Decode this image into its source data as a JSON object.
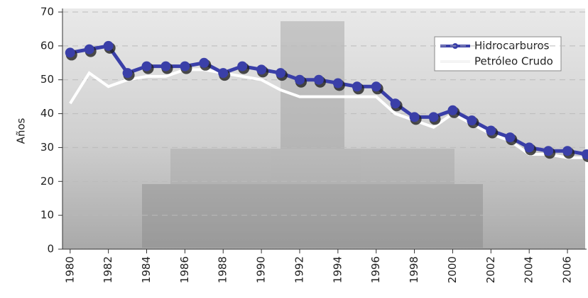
{
  "chart_data": {
    "type": "line",
    "y_label": "Años",
    "x": [
      1980,
      1981,
      1982,
      1983,
      1984,
      1985,
      1986,
      1987,
      1988,
      1989,
      1990,
      1991,
      1992,
      1993,
      1994,
      1995,
      1996,
      1997,
      1998,
      1999,
      2000,
      2001,
      2002,
      2003,
      2004,
      2005,
      2006,
      2007
    ],
    "series": [
      {
        "name": "Hidrocarburos",
        "color": "#3a3fa8",
        "values": [
          58,
          59,
          60,
          52,
          54,
          54,
          54,
          55,
          52,
          54,
          53,
          52,
          50,
          50,
          49,
          48,
          48,
          43,
          39,
          39,
          41,
          38,
          35,
          33,
          30,
          29,
          29,
          28
        ]
      },
      {
        "name": "Petróleo Crudo",
        "color": "#ffffff",
        "values": [
          43,
          52,
          48,
          50,
          51,
          51,
          53,
          53,
          52,
          51,
          50,
          47,
          45,
          45,
          45,
          45,
          45,
          40,
          38,
          36,
          40,
          37,
          34,
          32,
          28,
          28,
          27,
          27
        ]
      }
    ],
    "xlim": [
      1979.6,
      2007
    ],
    "xticks": [
      1980,
      1982,
      1984,
      1986,
      1988,
      1990,
      1992,
      1994,
      1996,
      1998,
      2000,
      2002,
      2004,
      2006
    ],
    "ylim": [
      0,
      70
    ],
    "yticks": [
      0,
      10,
      20,
      30,
      40,
      50,
      60,
      70
    ],
    "grid": true,
    "legend": "upper right"
  }
}
